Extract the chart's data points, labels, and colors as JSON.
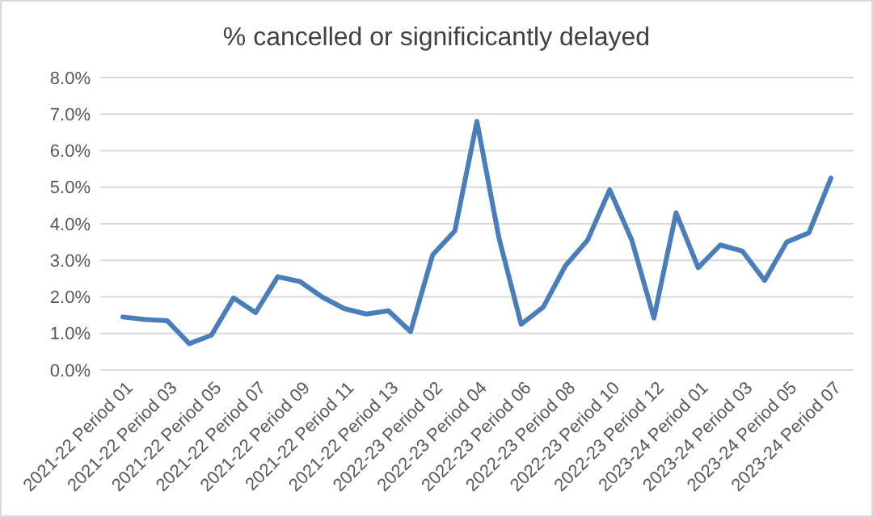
{
  "chart_data": {
    "type": "line",
    "title": "% cancelled or significicantly delayed",
    "categories": [
      "2021-22 Period 01",
      null,
      "2021-22 Period 03",
      null,
      "2021-22 Period 05",
      null,
      "2021-22 Period 07",
      null,
      "2021-22 Period 09",
      null,
      "2021-22 Period 11",
      null,
      "2021-22 Period 13",
      null,
      "2022-23 Period 02",
      null,
      "2022-23 Period 04",
      null,
      "2022-23 Period 06",
      null,
      "2022-23 Period 08",
      null,
      "2022-23 Period 10",
      null,
      "2022-23 Period 12",
      null,
      "2023-24 Period 01",
      null,
      "2023-24 Period 03",
      null,
      "2023-24 Period 05",
      null,
      "2023-24 Period 07"
    ],
    "series": [
      {
        "color": "#4a7ebb",
        "values": [
          1.45,
          1.38,
          1.35,
          0.72,
          0.95,
          1.97,
          1.57,
          2.55,
          2.42,
          2.0,
          1.68,
          1.53,
          1.62,
          1.05,
          3.15,
          3.8,
          6.8,
          3.6,
          1.25,
          1.72,
          2.85,
          3.55,
          4.93,
          3.55,
          1.42,
          4.3,
          2.8,
          3.42,
          3.25,
          2.45,
          3.5,
          3.75,
          5.25
        ]
      }
    ],
    "ylim": [
      0,
      8
    ],
    "yticks": [
      {
        "value": 0,
        "label": "0.0%"
      },
      {
        "value": 1,
        "label": "1.0%"
      },
      {
        "value": 2,
        "label": "2.0%"
      },
      {
        "value": 3,
        "label": "3.0%"
      },
      {
        "value": 4,
        "label": "4.0%"
      },
      {
        "value": 5,
        "label": "5.0%"
      },
      {
        "value": 6,
        "label": "6.0%"
      },
      {
        "value": 7,
        "label": "7.0%"
      },
      {
        "value": 8,
        "label": "8.0%"
      }
    ],
    "grid": "y",
    "marker": "none",
    "line_style": "solid"
  }
}
